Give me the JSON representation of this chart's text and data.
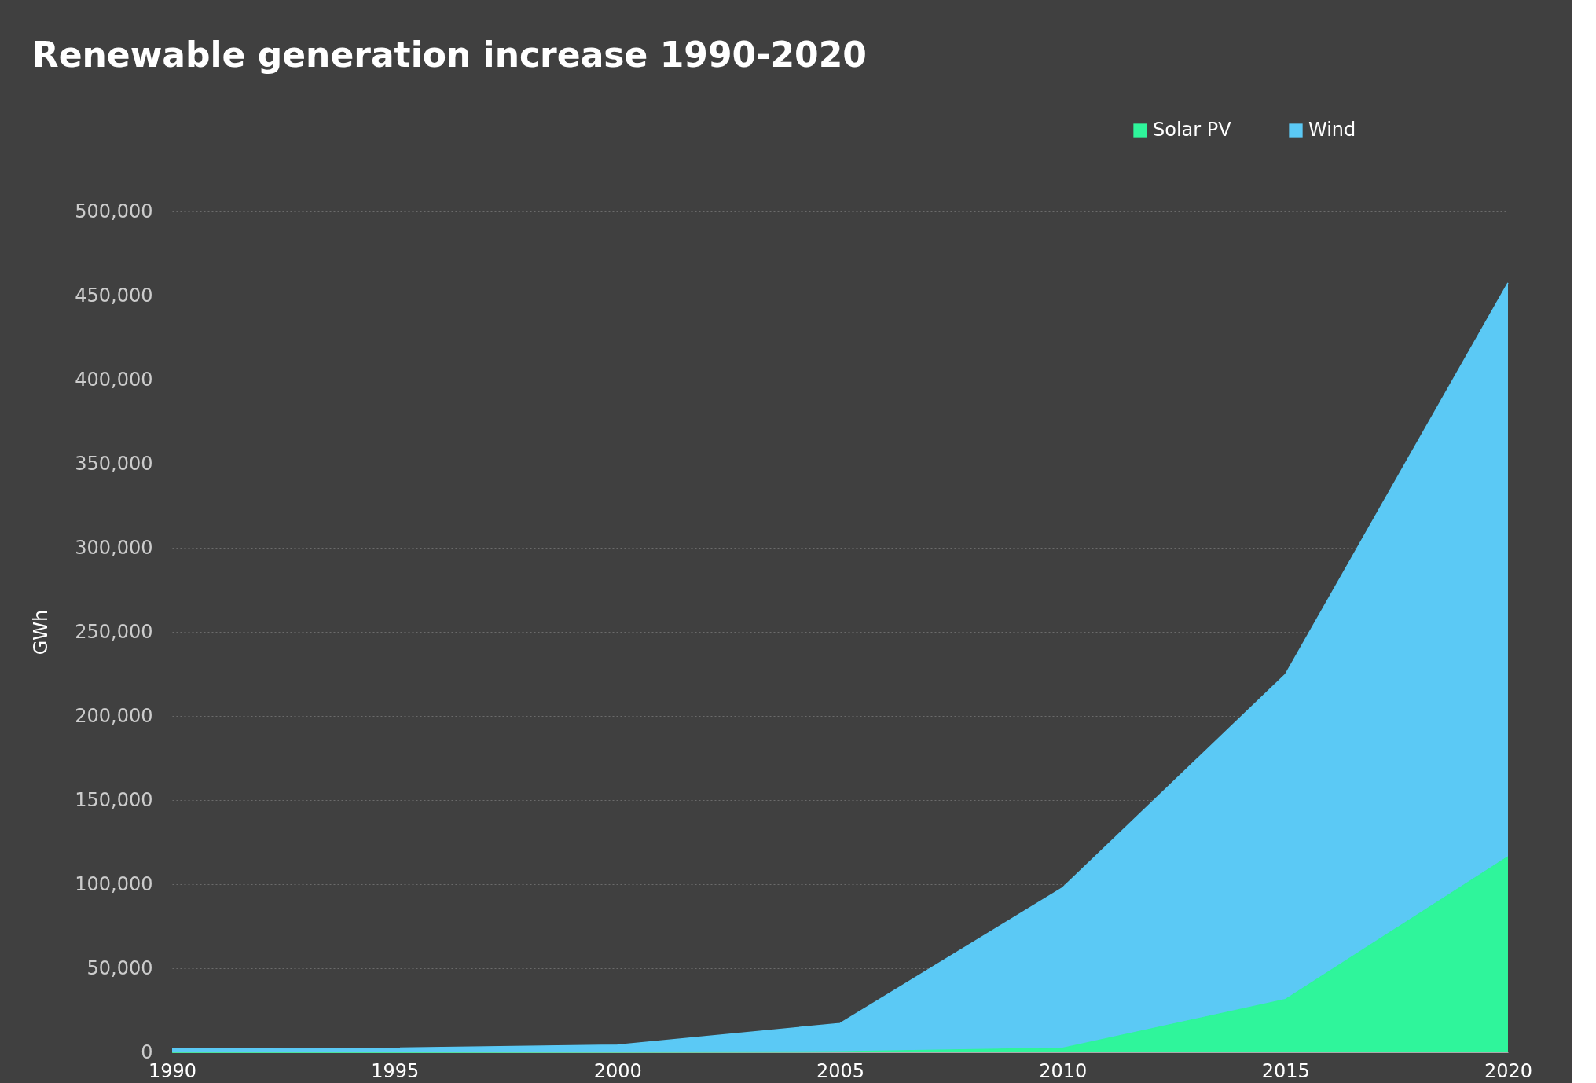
{
  "chart_data": {
    "type": "area",
    "title": "Renewable generation increase 1990-2020",
    "ylabel": "GWh",
    "x": [
      1990,
      1995,
      2000,
      2005,
      2010,
      2015,
      2020
    ],
    "stacked": true,
    "series": [
      {
        "name": "Solar PV",
        "color": "#2ff59b",
        "values": [
          0,
          0,
          100,
          300,
          2500,
          31400,
          116300
        ]
      },
      {
        "name": "Wind",
        "color": "#5bc9f5",
        "values": [
          2000,
          2500,
          4200,
          16900,
          95500,
          193300,
          341200
        ]
      }
    ],
    "xlim": [
      1990,
      2020
    ],
    "xticks": [
      1990,
      1995,
      2000,
      2005,
      2010,
      2015,
      2020
    ],
    "ylim": [
      0,
      500000
    ],
    "yticks": [
      0,
      {
        "value": 50000,
        "label": "50,000"
      },
      {
        "value": 100000,
        "label": "100,000"
      },
      {
        "value": 150000,
        "label": "150,000"
      },
      {
        "value": 200000,
        "label": "200,000"
      },
      {
        "value": 250000,
        "label": "250,000"
      },
      {
        "value": 300000,
        "label": "300,000"
      },
      {
        "value": 350000,
        "label": "350,000"
      },
      {
        "value": 400000,
        "label": "400,000"
      },
      {
        "value": 450000,
        "label": "450,000"
      },
      {
        "value": 500000,
        "label": "500,000"
      }
    ],
    "grid": "y",
    "legend": "top right"
  }
}
